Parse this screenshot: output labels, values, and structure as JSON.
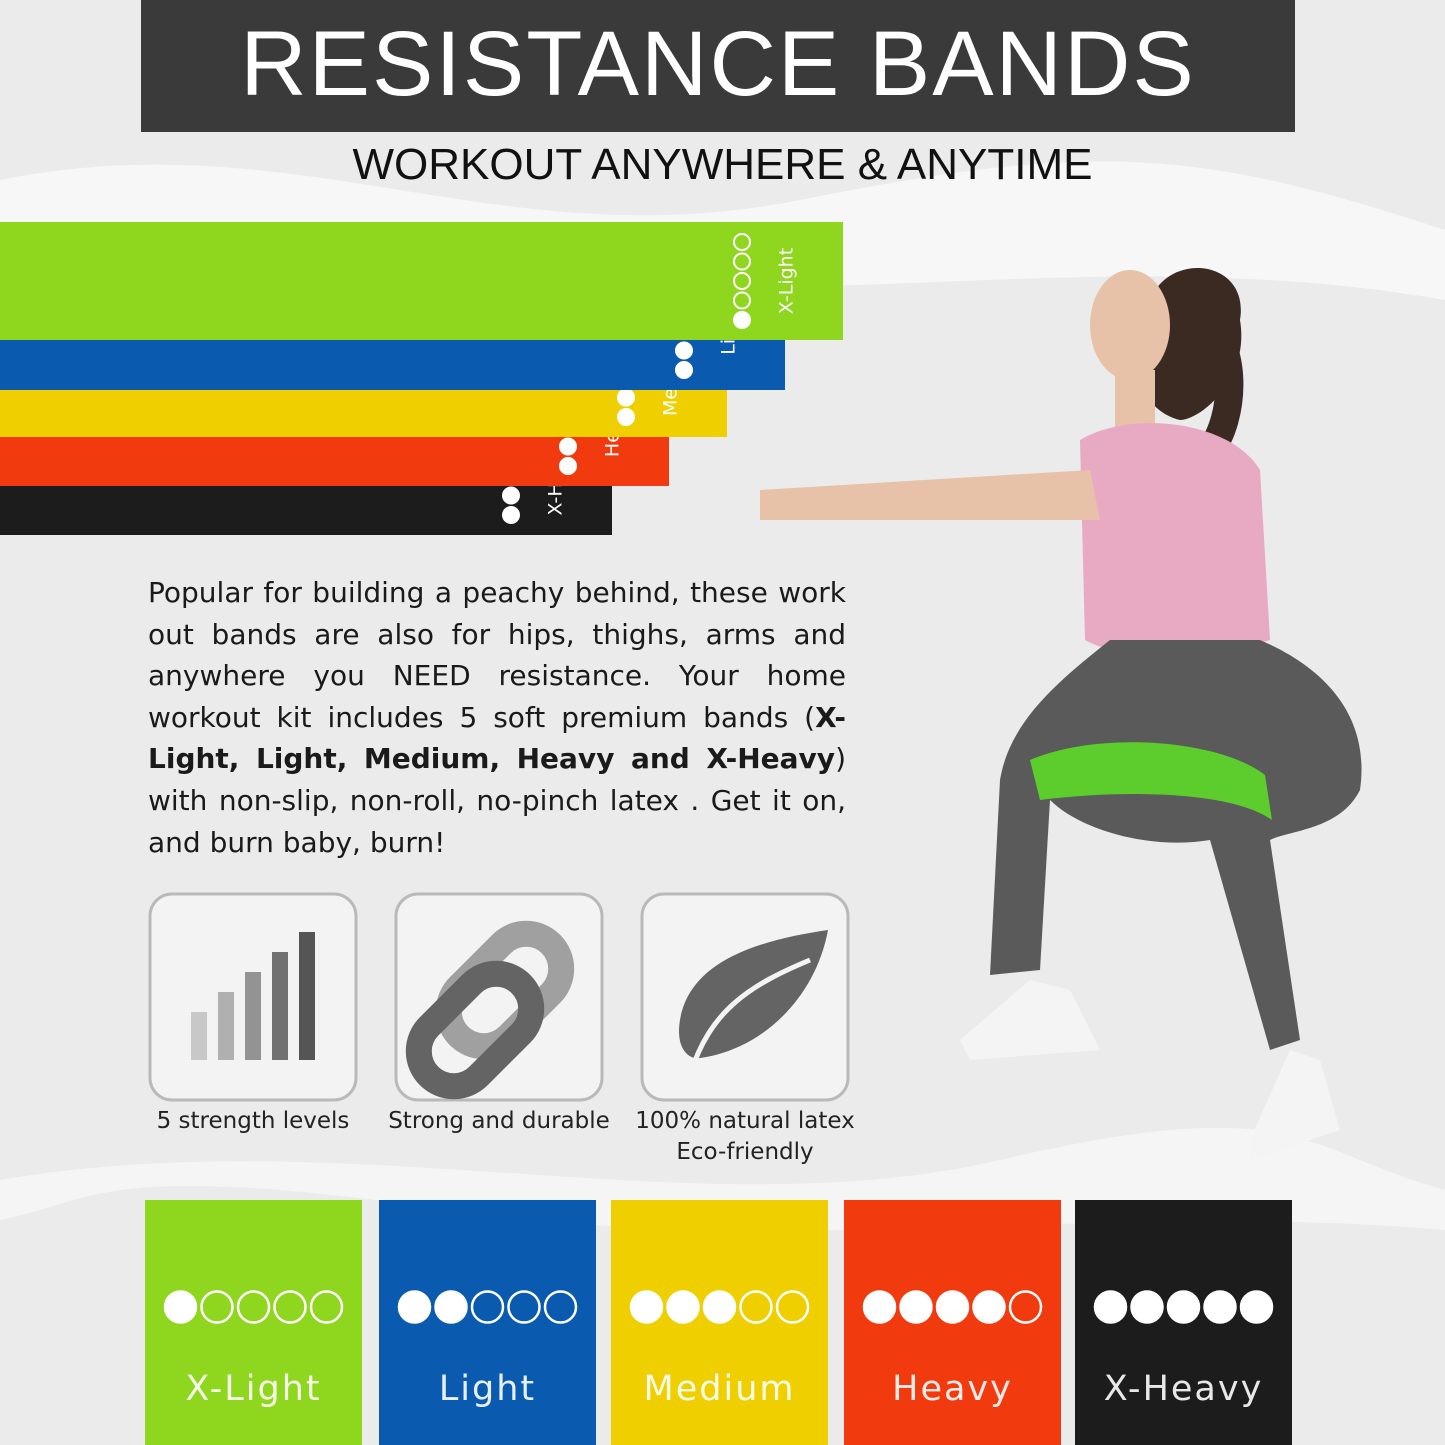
{
  "header": {
    "title": "RESISTANCE BANDS",
    "subtitle": "WORKOUT ANYWHERE & ANYTIME"
  },
  "description": {
    "before": "Popular for building a peachy behind, these work out bands are also for hips, thighs, arms and anywhere you NEED resistance. Your home workout kit includes 5 soft premium bands (",
    "bold": "X-Light, Light, Medium, Heavy and X-Heavy",
    "after": ") with non-slip, non-roll, no-pinch latex . Get it on, and burn baby, burn!"
  },
  "features": [
    {
      "label": "5 strength levels"
    },
    {
      "label": "Strong and durable"
    },
    {
      "label": "100% natural latex",
      "sublabel": "Eco-friendly"
    }
  ],
  "bands": [
    {
      "name": "X-Light",
      "level": 1,
      "color": "#8fd61e"
    },
    {
      "name": "Light",
      "level": 2,
      "color": "#0a5bb0"
    },
    {
      "name": "Medium",
      "level": 3,
      "color": "#f0cf00"
    },
    {
      "name": "Heavy",
      "level": 4,
      "color": "#f23a0f"
    },
    {
      "name": "X-Heavy",
      "level": 5,
      "color": "#1c1c1c"
    }
  ]
}
